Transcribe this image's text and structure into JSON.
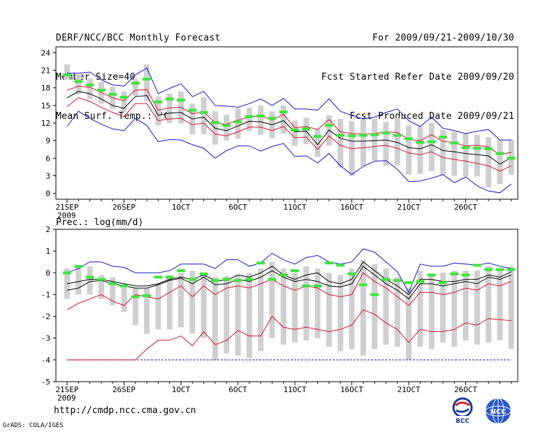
{
  "header": {
    "title": "DERF/NCC/BCC Monthly Forecast",
    "member_size": "Member Size=40",
    "period": "For 2009/09/21-2009/10/30",
    "fcst_started": "Fcst Started Refer Date 2009/09/20",
    "fcst_produced": "Fcst Produced Date 2009/09/21"
  },
  "footer": {
    "url": "http://cmdp.ncc.cma.gov.cn",
    "credit": "GrADS: COLA/IGES",
    "logo_bcc_text": "BCC",
    "logo_ncc_text": "NCC"
  },
  "colors": {
    "bar": "#cfcfcf",
    "mean": "#000000",
    "red": "#d8142c",
    "blue": "#1414c8",
    "green": "#3ce63c",
    "baseline": "#1414c8"
  },
  "chart_data": [
    {
      "type": "line",
      "title": "Mean Surf. Temp.: °C",
      "ylim": [
        -1,
        25
      ],
      "yticks": [
        0,
        3,
        6,
        9,
        12,
        15,
        18,
        21,
        24
      ],
      "xtick_labels": [
        "21SEP",
        "26SEP",
        "1OCT",
        "6OCT",
        "11OCT",
        "16OCT",
        "21OCT",
        "26OCT"
      ],
      "xtick_days": [
        0,
        5,
        10,
        15,
        20,
        25,
        30,
        35
      ],
      "x_sub_label": "2009",
      "days": 40,
      "series": [
        {
          "name": "max",
          "color_key": "blue",
          "values": [
            20.5,
            20.5,
            20.7,
            19.4,
            18.5,
            18.3,
            20.2,
            21.4,
            17.0,
            17.9,
            18.7,
            16.5,
            17.4,
            15.0,
            14.9,
            14.7,
            15.3,
            16.1,
            15.0,
            16.2,
            14.4,
            14.4,
            14.2,
            16.1,
            14.0,
            13.3,
            12.7,
            13.0,
            13.8,
            14.4,
            12.4,
            11.4,
            13.0,
            11.1,
            10.7,
            10.2,
            10.6,
            10.9,
            9.1,
            9.1
          ]
        },
        {
          "name": "upper",
          "color_key": "red",
          "values": [
            17.6,
            18.3,
            18.1,
            17.2,
            16.3,
            15.8,
            17.6,
            17.7,
            14.2,
            14.6,
            14.7,
            13.6,
            13.9,
            12.0,
            11.8,
            12.5,
            13.0,
            13.2,
            12.5,
            13.5,
            11.2,
            11.4,
            10.9,
            12.6,
            10.5,
            10.2,
            10.1,
            10.2,
            10.5,
            10.4,
            9.2,
            9.0,
            10.0,
            8.9,
            8.6,
            8.1,
            8.2,
            7.9,
            6.6,
            7.0
          ]
        },
        {
          "name": "mean",
          "color_key": "mean",
          "values": [
            16.3,
            17.4,
            17.0,
            16.1,
            15.0,
            14.5,
            16.5,
            16.7,
            13.3,
            13.7,
            13.8,
            12.7,
            13.0,
            11.1,
            10.7,
            11.5,
            12.3,
            12.2,
            11.7,
            12.4,
            10.5,
            10.6,
            8.3,
            10.8,
            9.4,
            8.9,
            8.9,
            9.0,
            9.1,
            8.7,
            7.8,
            7.6,
            8.3,
            7.3,
            7.1,
            6.8,
            6.6,
            6.4,
            5.0,
            6.1
          ]
        },
        {
          "name": "lower",
          "color_key": "red",
          "values": [
            14.8,
            16.3,
            15.7,
            14.7,
            13.8,
            13.1,
            15.3,
            15.3,
            12.4,
            12.7,
            12.8,
            11.7,
            12.0,
            10.1,
            9.8,
            10.5,
            11.3,
            11.3,
            10.7,
            11.4,
            9.5,
            9.6,
            7.5,
            9.8,
            8.2,
            7.6,
            7.8,
            8.0,
            8.2,
            7.7,
            6.9,
            6.6,
            7.1,
            6.1,
            5.8,
            5.5,
            5.1,
            4.7,
            3.8,
            4.7
          ]
        },
        {
          "name": "min",
          "color_key": "blue",
          "values": [
            11.4,
            14.0,
            12.8,
            11.8,
            11.0,
            10.7,
            12.8,
            11.6,
            8.8,
            9.2,
            9.1,
            8.3,
            7.7,
            6.0,
            7.3,
            8.1,
            8.1,
            7.2,
            8.0,
            8.5,
            6.3,
            6.4,
            5.2,
            6.8,
            4.7,
            3.2,
            4.6,
            5.5,
            5.6,
            4.1,
            2.0,
            2.1,
            2.6,
            3.2,
            1.8,
            2.8,
            1.3,
            0.4,
            0.1,
            1.6
          ]
        },
        {
          "name": "bar_top",
          "color_key": "bar",
          "values": [
            22.0,
            20.3,
            19.6,
            19.0,
            18.2,
            17.4,
            19.5,
            22.0,
            16.5,
            17.0,
            17.4,
            15.3,
            16.4,
            14.0,
            13.4,
            14.5,
            14.6,
            15.0,
            14.0,
            15.0,
            12.4,
            12.9,
            11.0,
            13.3,
            12.7,
            12.3,
            12.6,
            12.7,
            12.2,
            12.9,
            11.6,
            11.4,
            12.0,
            10.8,
            10.5,
            10.3,
            10.0,
            9.6,
            9.2,
            9.2
          ]
        },
        {
          "name": "bar_bottom",
          "color_key": "bar",
          "values": [
            19.4,
            16.9,
            16.1,
            15.3,
            14.4,
            13.9,
            16.6,
            15.7,
            11.6,
            12.0,
            11.9,
            10.1,
            10.1,
            8.3,
            9.0,
            9.3,
            10.6,
            10.0,
            9.4,
            10.2,
            8.1,
            8.4,
            6.2,
            8.1,
            4.4,
            3.0,
            4.7,
            5.6,
            4.7,
            4.8,
            3.2,
            3.3,
            3.8,
            3.1,
            3.0,
            2.9,
            2.9,
            1.0,
            1.6,
            3.2
          ]
        },
        {
          "name": "observed",
          "color_key": "green",
          "values": [
            20.2,
            19.1,
            18.5,
            17.6,
            16.9,
            16.4,
            18.8,
            19.5,
            15.6,
            16.1,
            15.9,
            14.2,
            13.8,
            12.1,
            11.6,
            12.2,
            13.1,
            13.2,
            12.8,
            13.9,
            10.8,
            11.0,
            9.7,
            11.6,
            9.9,
            9.8,
            9.9,
            10.0,
            10.3,
            9.9,
            9.3,
            8.7,
            8.8,
            9.6,
            8.6,
            7.8,
            7.7,
            7.6,
            6.8,
            6.0
          ]
        }
      ]
    },
    {
      "type": "line",
      "title": "Prec.: log(mm/d)",
      "ylim": [
        -5,
        2
      ],
      "yticks": [
        -5,
        -4,
        -3,
        -2,
        -1,
        0,
        1,
        2
      ],
      "xtick_labels": [
        "21SEP",
        "26SEP",
        "1OCT",
        "6OCT",
        "11OCT",
        "16OCT",
        "21OCT",
        "26OCT"
      ],
      "xtick_days": [
        0,
        5,
        10,
        15,
        20,
        25,
        30,
        35
      ],
      "x_sub_label": "2009",
      "days": 40,
      "baseline": -4,
      "series": [
        {
          "name": "max",
          "color_key": "blue",
          "values": [
            0.0,
            0.2,
            0.5,
            0.5,
            0.3,
            0.25,
            0.0,
            0.0,
            0.0,
            0.1,
            0.4,
            0.4,
            0.4,
            0.2,
            0.6,
            0.6,
            0.3,
            0.45,
            0.9,
            0.6,
            0.4,
            0.7,
            0.8,
            0.5,
            0.4,
            0.5,
            1.1,
            0.95,
            0.5,
            0.05,
            -0.9,
            0.4,
            0.3,
            0.3,
            0.45,
            0.4,
            0.35,
            0.45,
            0.3,
            0.2
          ]
        },
        {
          "name": "upper",
          "color_key": "mean",
          "values": [
            -0.5,
            -0.4,
            -0.3,
            -0.3,
            -0.4,
            -0.5,
            -0.6,
            -0.6,
            -0.5,
            -0.3,
            -0.2,
            -0.3,
            -0.1,
            -0.35,
            -0.35,
            -0.1,
            -0.2,
            0.0,
            0.3,
            -0.1,
            -0.3,
            -0.1,
            0.0,
            -0.4,
            -0.5,
            -0.3,
            0.5,
            0.1,
            -0.3,
            -0.6,
            -1.0,
            -0.3,
            -0.3,
            -0.4,
            -0.4,
            -0.3,
            -0.3,
            -0.1,
            -0.2,
            0.05
          ]
        },
        {
          "name": "mean",
          "color_key": "mean",
          "values": [
            -0.8,
            -0.7,
            -0.4,
            -0.35,
            -0.5,
            -0.6,
            -0.7,
            -0.7,
            -0.55,
            -0.35,
            -0.25,
            -0.5,
            -0.2,
            -0.55,
            -0.5,
            -0.3,
            -0.4,
            -0.2,
            0.1,
            -0.2,
            -0.4,
            -0.3,
            -0.4,
            -0.6,
            -0.65,
            -0.5,
            0.3,
            -0.1,
            -0.5,
            -0.8,
            -1.2,
            -0.5,
            -0.5,
            -0.6,
            -0.5,
            -0.4,
            -0.5,
            -0.2,
            -0.3,
            -0.1
          ]
        },
        {
          "name": "lower",
          "color_key": "red",
          "values": [
            -1.7,
            -1.4,
            -1.2,
            -1.0,
            -1.3,
            -1.5,
            -1.0,
            -1.1,
            -1.2,
            -0.9,
            -0.6,
            -1.1,
            -0.6,
            -1.0,
            -0.7,
            -0.6,
            -0.7,
            -0.5,
            -0.3,
            -0.6,
            -0.8,
            -0.6,
            -0.7,
            -1.0,
            -1.1,
            -1.0,
            0.0,
            -0.4,
            -0.7,
            -1.1,
            -1.5,
            -0.9,
            -0.9,
            -1.0,
            -0.9,
            -0.7,
            -0.8,
            -0.5,
            -0.6,
            -0.4
          ]
        },
        {
          "name": "lowest",
          "color_key": "red",
          "values": [
            -4.0,
            -4.0,
            -4.0,
            -4.0,
            -4.0,
            -4.0,
            -4.0,
            -3.5,
            -3.1,
            -3.1,
            -2.9,
            -3.35,
            -2.7,
            -3.3,
            -3.1,
            -2.65,
            -2.9,
            -2.9,
            -2.0,
            -2.5,
            -2.6,
            -2.5,
            -2.6,
            -2.7,
            -2.6,
            -2.4,
            -1.7,
            -1.9,
            -2.3,
            -2.6,
            -3.2,
            -2.6,
            -2.7,
            -2.7,
            -2.6,
            -2.3,
            -2.4,
            -2.1,
            -2.15,
            -2.2
          ]
        },
        {
          "name": "bar_top",
          "color_key": "bar",
          "values": [
            0.2,
            0.35,
            0.3,
            -0.1,
            -0.2,
            -0.6,
            -0.7,
            -0.7,
            -0.5,
            -0.1,
            0.0,
            0.1,
            0.0,
            -0.2,
            -0.15,
            -0.1,
            0.0,
            0.2,
            0.5,
            0.2,
            0.0,
            0.3,
            0.2,
            0.0,
            -0.1,
            0.2,
            0.6,
            0.4,
            0.2,
            -0.2,
            -0.7,
            0.1,
            -0.1,
            0.0,
            0.1,
            0.1,
            0.1,
            0.3,
            0.1,
            0.3
          ]
        },
        {
          "name": "bar_bottom",
          "color_key": "bar",
          "values": [
            -1.2,
            -1.0,
            -1.0,
            -1.2,
            -1.5,
            -1.8,
            -2.4,
            -2.8,
            -2.6,
            -2.6,
            -2.5,
            -2.8,
            -3.0,
            -4.0,
            -3.7,
            -3.8,
            -3.9,
            -3.6,
            -3.0,
            -3.3,
            -3.2,
            -3.1,
            -3.0,
            -3.4,
            -3.6,
            -3.5,
            -3.8,
            -3.5,
            -3.3,
            -3.4,
            -4.0,
            -3.4,
            -3.5,
            -3.2,
            -3.4,
            -3.1,
            -3.3,
            -3.2,
            -3.1,
            -3.5
          ]
        },
        {
          "name": "observed",
          "color_key": "green",
          "values": [
            0.0,
            0.3,
            -0.2,
            -0.3,
            -0.5,
            -0.6,
            -1.1,
            -1.05,
            -0.2,
            -0.2,
            0.1,
            -0.3,
            -0.05,
            -0.35,
            -0.3,
            -0.35,
            -0.3,
            0.45,
            -0.3,
            -0.1,
            0.1,
            -0.6,
            -0.6,
            0.45,
            0.35,
            -0.05,
            -0.55,
            -1.0,
            -0.3,
            -0.35,
            -0.45,
            -0.4,
            -0.1,
            -0.45,
            -0.05,
            -0.1,
            0.35,
            0.15,
            0.15,
            0.15
          ]
        }
      ]
    }
  ]
}
